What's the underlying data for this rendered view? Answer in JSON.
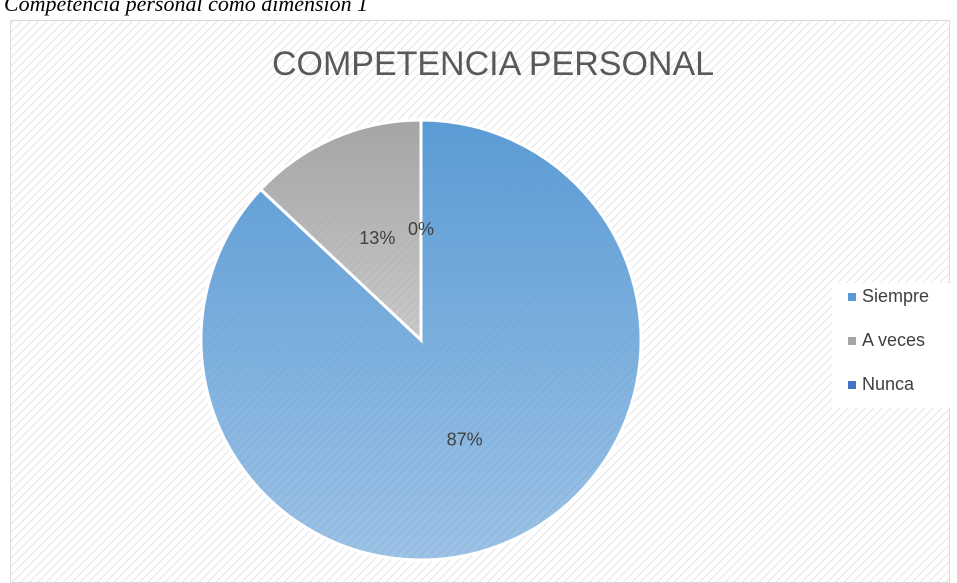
{
  "caption": "Competencia personal como dimensión 1",
  "chart_data": {
    "type": "pie",
    "title": "COMPETENCIA PERSONAL",
    "categories": [
      "Siempre",
      "A veces",
      "Nunca"
    ],
    "values": [
      87,
      13,
      0
    ],
    "value_labels": [
      "87%",
      "13%",
      "0%"
    ],
    "colors": [
      "#5b9bd5",
      "#a5a5a5",
      "#4472c4"
    ],
    "legend": "right"
  }
}
